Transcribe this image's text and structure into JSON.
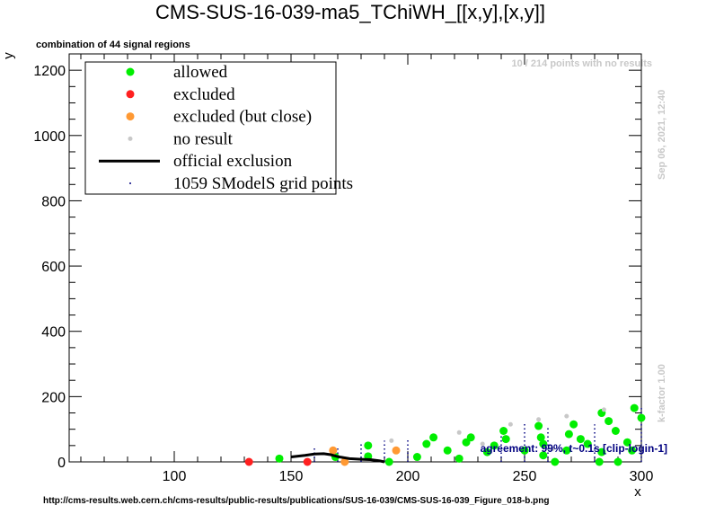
{
  "chart_data": {
    "type": "scatter",
    "title": "CMS-SUS-16-039-ma5_TChiWH_[[x,y],[x,y]]",
    "subtitle": "combination of 44 signal regions",
    "xlabel": "x",
    "ylabel": "y",
    "xlim": [
      55,
      300
    ],
    "ylim": [
      0,
      1250
    ],
    "x_ticks": [
      100,
      150,
      200,
      250,
      300
    ],
    "y_ticks": [
      0,
      200,
      400,
      600,
      800,
      1000,
      1200
    ],
    "no_result_note": "10 / 214 points with no results",
    "timestamp": "Sep 06, 2021, 12:40",
    "kfactor": "k-factor 1.00",
    "agreement": "agreement: 99%, t~0.1s [clip-login-1]",
    "url": "http://cms-results.web.cern.ch/cms-results/public-results/publications/SUS-16-039/CMS-SUS-16-039_Figure_018-b.png",
    "legend": [
      {
        "label": "allowed",
        "marker": "dot",
        "color": "#00ee00"
      },
      {
        "label": "excluded",
        "marker": "dot",
        "color": "#ff2020"
      },
      {
        "label": "excluded (but close)",
        "marker": "dot",
        "color": "#ff9933"
      },
      {
        "label": "no result",
        "marker": "small-dot",
        "color": "#c8c8c8"
      },
      {
        "label": "official exclusion",
        "marker": "line",
        "color": "#000000"
      },
      {
        "label": "1059 SModelS grid points",
        "marker": "tiny-dot",
        "color": "#000080"
      }
    ],
    "series": [
      {
        "name": "allowed",
        "color": "#00ee00",
        "points": [
          [
            145,
            10
          ],
          [
            169,
            15
          ],
          [
            183,
            17
          ],
          [
            183,
            50
          ],
          [
            192,
            0
          ],
          [
            204,
            15
          ],
          [
            208,
            55
          ],
          [
            211,
            75
          ],
          [
            217,
            35
          ],
          [
            222,
            10
          ],
          [
            225,
            60
          ],
          [
            227,
            75
          ],
          [
            234,
            30
          ],
          [
            237,
            50
          ],
          [
            241,
            95
          ],
          [
            242,
            70
          ],
          [
            250,
            35
          ],
          [
            256,
            110
          ],
          [
            257,
            75
          ],
          [
            258,
            55
          ],
          [
            258,
            20
          ],
          [
            263,
            0
          ],
          [
            268,
            35
          ],
          [
            269,
            85
          ],
          [
            271,
            115
          ],
          [
            274,
            70
          ],
          [
            277,
            55
          ],
          [
            282,
            0
          ],
          [
            283,
            30
          ],
          [
            283,
            150
          ],
          [
            286,
            125
          ],
          [
            289,
            95
          ],
          [
            290,
            0
          ],
          [
            294,
            60
          ],
          [
            296,
            35
          ],
          [
            297,
            165
          ],
          [
            300,
            135
          ]
        ]
      },
      {
        "name": "excluded",
        "color": "#ff2020",
        "points": [
          [
            132,
            0
          ],
          [
            157,
            0
          ]
        ]
      },
      {
        "name": "excluded (but close)",
        "color": "#ff9933",
        "points": [
          [
            168,
            35
          ],
          [
            173,
            0
          ],
          [
            195,
            35
          ]
        ]
      },
      {
        "name": "no result",
        "color": "#c8c8c8",
        "points": [
          [
            193,
            65
          ],
          [
            222,
            90
          ],
          [
            232,
            55
          ],
          [
            244,
            115
          ],
          [
            256,
            130
          ],
          [
            262,
            40
          ],
          [
            268,
            140
          ],
          [
            284,
            160
          ]
        ]
      },
      {
        "name": "official exclusion",
        "color": "#000000",
        "line": [
          [
            150,
            15
          ],
          [
            156,
            20
          ],
          [
            160,
            24
          ],
          [
            164,
            25
          ],
          [
            167,
            22
          ],
          [
            170,
            16
          ],
          [
            175,
            10
          ],
          [
            180,
            8
          ],
          [
            184,
            7
          ],
          [
            188,
            3
          ],
          [
            190,
            0
          ]
        ]
      },
      {
        "name": "1059 SModelS grid points",
        "color": "#000080",
        "columns": [
          [
            160,
            0,
            45
          ],
          [
            170,
            0,
            45
          ],
          [
            180,
            0,
            55
          ],
          [
            190,
            0,
            65
          ],
          [
            200,
            0,
            70
          ],
          [
            240,
            0,
            100
          ],
          [
            250,
            0,
            120
          ],
          [
            260,
            0,
            110
          ],
          [
            280,
            0,
            115
          ],
          [
            300,
            0,
            170
          ]
        ]
      }
    ]
  }
}
